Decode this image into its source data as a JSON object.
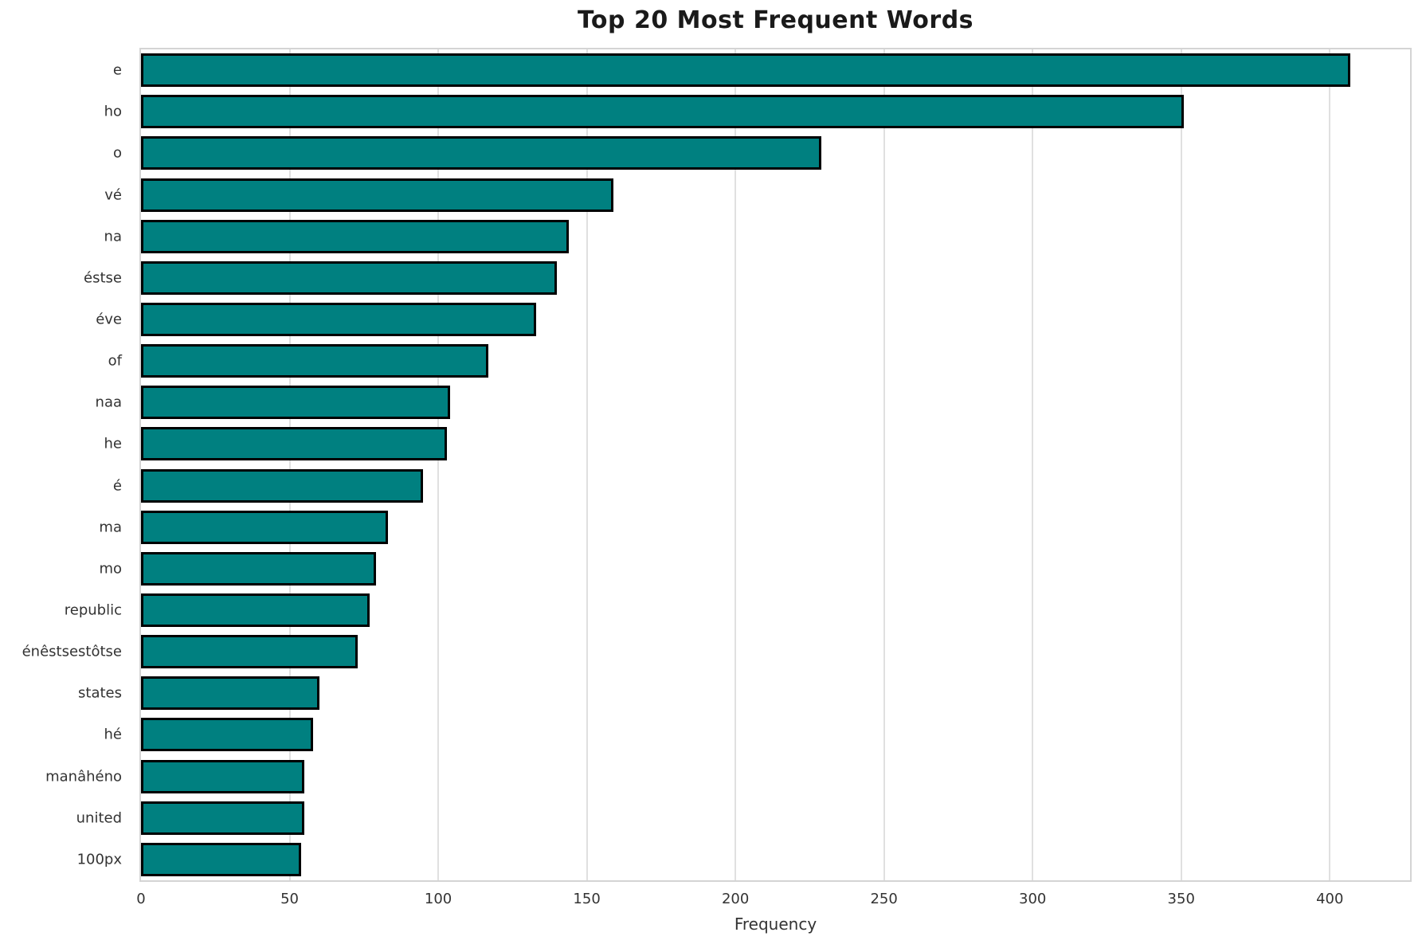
{
  "chart_data": {
    "type": "bar",
    "orientation": "horizontal",
    "title": "Top 20 Most Frequent Words",
    "xlabel": "Frequency",
    "ylabel": "",
    "categories": [
      "e",
      "ho",
      "o",
      "vé",
      "na",
      "éstse",
      "éve",
      "of",
      "naa",
      "he",
      "é",
      "ma",
      "mo",
      "republic",
      "énêstsestôtse",
      "states",
      "hé",
      "manâhéno",
      "united",
      "100px"
    ],
    "values": [
      407,
      351,
      229,
      159,
      144,
      140,
      133,
      117,
      104,
      103,
      95,
      83,
      79,
      77,
      73,
      60,
      58,
      55,
      55,
      54
    ],
    "xlim": [
      0,
      427
    ],
    "xticks": [
      0,
      50,
      100,
      150,
      200,
      250,
      300,
      350,
      400
    ],
    "grid": true,
    "legend": "none",
    "bar_color": "#008080",
    "bar_edge_color": "#000000",
    "background_color": "#ffffff",
    "gridline_color": "#e0e0e0"
  }
}
